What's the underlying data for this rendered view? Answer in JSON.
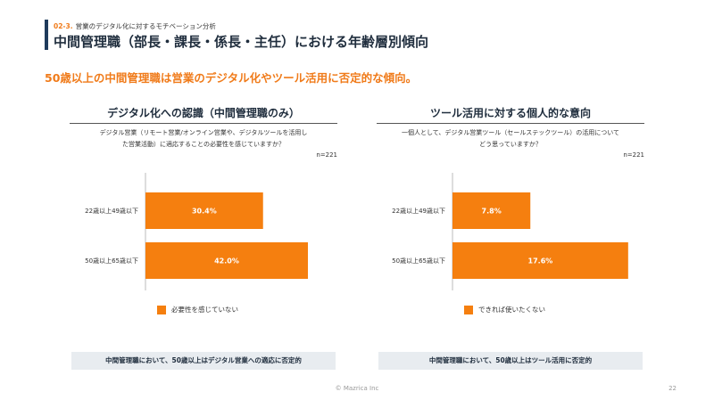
{
  "header": {
    "section_number": "02-3.",
    "section_label": "営業のデジタル化に対するモチベーション分析",
    "title": "中間管理職（部長・課長・係長・主任）における年齢層別傾向"
  },
  "headline": "50歳以上の中間管理職は営業のデジタル化やツール活用に否定的な傾向。",
  "colors": {
    "bar": "#f57f0f",
    "accent": "#f07b1a",
    "navy": "#1f3b5c",
    "summary_bg": "#e8ecf0"
  },
  "panels": [
    {
      "title": "デジタル化への認識（中間管理職のみ）",
      "question_line1": "デジタル営業（リモート営業/オンライン営業や、デジタルツールを活用し",
      "question_line2": "た営業活動）に適応することの必要性を感じていますか？",
      "n": "n=221",
      "legend": "必要性を感じていない",
      "summary": "中間管理職において、50歳以上はデジタル営業への適応に否定的"
    },
    {
      "title": "ツール活用に対する個人的な意向",
      "question_line1": "一個人として、デジタル営業ツール（セールステックツール）の活用について",
      "question_line2": "どう思っていますか？",
      "n": "n=221",
      "legend": "できれば使いたくない",
      "summary": "中間管理職において、50歳以上はツール活用に否定的"
    }
  ],
  "chart_data": [
    {
      "type": "bar",
      "orientation": "horizontal",
      "title": "デジタル化への認識（中間管理職のみ）",
      "categories": [
        "22歳以上49歳以下",
        "50歳以上65歳以下"
      ],
      "series": [
        {
          "name": "必要性を感じていない",
          "values": [
            30.4,
            42.0
          ]
        }
      ],
      "value_labels": [
        "30.4%",
        "42.0%"
      ],
      "xlim": [
        0,
        48
      ],
      "grid": false,
      "legend_position": "bottom"
    },
    {
      "type": "bar",
      "orientation": "horizontal",
      "title": "ツール活用に対する個人的な意向",
      "categories": [
        "22歳以上49歳以下",
        "50歳以上65歳以下"
      ],
      "series": [
        {
          "name": "できれば使いたくない",
          "values": [
            7.8,
            17.6
          ]
        }
      ],
      "value_labels": [
        "7.8%",
        "17.6%"
      ],
      "xlim": [
        0,
        18.6
      ],
      "grid": false,
      "legend_position": "bottom"
    }
  ],
  "footer": {
    "copyright": "© Mazrica Inc",
    "page": "22"
  }
}
